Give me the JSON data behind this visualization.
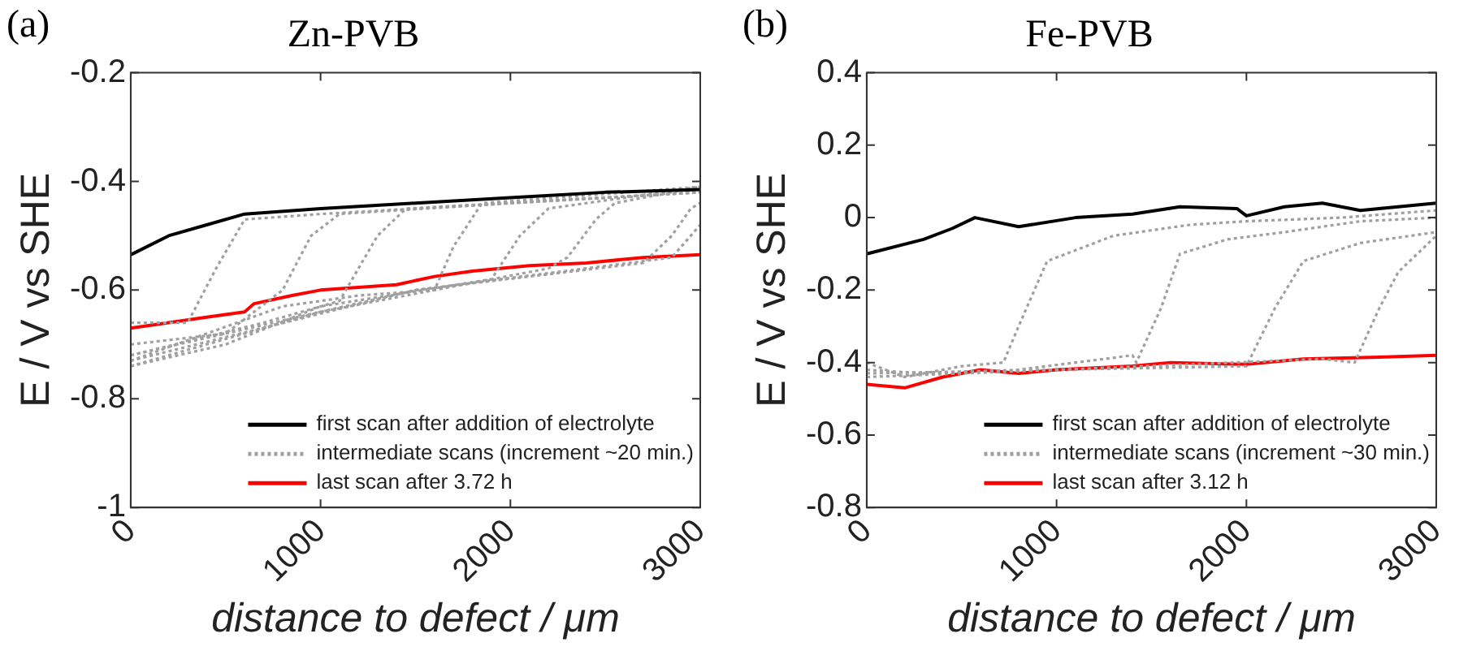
{
  "chart_data": [
    {
      "type": "line",
      "title": "Zn-PVB",
      "annotations": [
        "(a)"
      ],
      "xlabel": "distance to defect / μm",
      "ylabel": "E / V vs SHE",
      "xlim": [
        0,
        3000
      ],
      "xticks": [
        0,
        1000,
        2000,
        3000
      ],
      "ylim": [
        -1,
        -0.2
      ],
      "yticks": [
        -1,
        -0.8,
        -0.6,
        -0.4,
        -0.2
      ],
      "grid": false,
      "legend": "bottom right",
      "marker": "none",
      "series": [
        {
          "name": "first scan after addition of electrolyte",
          "color": "#000000",
          "line_style": "solid",
          "x": [
            0,
            200,
            400,
            600,
            1000,
            1500,
            2000,
            2500,
            3000
          ],
          "values": [
            -0.535,
            -0.5,
            -0.48,
            -0.46,
            -0.45,
            -0.44,
            -0.43,
            -0.42,
            -0.415
          ]
        },
        {
          "name": "intermediate scans (increment ~20 min.)",
          "color": "#a0a0a0",
          "line_style": "dotted",
          "x": [
            0,
            300,
            450,
            600,
            1000,
            2000,
            3000
          ],
          "values": [
            -0.66,
            -0.66,
            -0.56,
            -0.47,
            -0.46,
            -0.44,
            -0.42
          ]
        },
        {
          "color": "#a0a0a0",
          "line_style": "dotted",
          "x": [
            0,
            500,
            800,
            950,
            1100,
            2000,
            3000
          ],
          "values": [
            -0.7,
            -0.68,
            -0.6,
            -0.5,
            -0.46,
            -0.44,
            -0.42
          ]
        },
        {
          "color": "#a0a0a0",
          "line_style": "dotted",
          "x": [
            0,
            700,
            1000,
            1100,
            1300,
            1450,
            3000
          ],
          "values": [
            -0.72,
            -0.66,
            -0.63,
            -0.62,
            -0.5,
            -0.45,
            -0.42
          ]
        },
        {
          "color": "#a0a0a0",
          "line_style": "dotted",
          "x": [
            0,
            400,
            800,
            1200,
            1600,
            1700,
            1850,
            3000
          ],
          "values": [
            -0.73,
            -0.68,
            -0.63,
            -0.61,
            -0.6,
            -0.52,
            -0.44,
            -0.41
          ]
        },
        {
          "color": "#a0a0a0",
          "line_style": "dotted",
          "x": [
            0,
            500,
            1000,
            1900,
            2050,
            2200,
            3000
          ],
          "values": [
            -0.74,
            -0.7,
            -0.63,
            -0.58,
            -0.5,
            -0.45,
            -0.41
          ]
        },
        {
          "color": "#a0a0a0",
          "line_style": "dotted",
          "x": [
            0,
            1000,
            2200,
            2300,
            2450,
            2550,
            3000
          ],
          "values": [
            -0.74,
            -0.64,
            -0.56,
            -0.54,
            -0.47,
            -0.44,
            -0.41
          ]
        },
        {
          "color": "#a0a0a0",
          "line_style": "dotted",
          "x": [
            0,
            1500,
            2700,
            2850,
            2950,
            3000
          ],
          "values": [
            -0.73,
            -0.6,
            -0.55,
            -0.5,
            -0.45,
            -0.44
          ]
        },
        {
          "color": "#a0a0a0",
          "line_style": "dotted",
          "x": [
            0,
            1500,
            2850,
            2950,
            3000
          ],
          "values": [
            -0.72,
            -0.6,
            -0.54,
            -0.5,
            -0.48
          ]
        },
        {
          "name": "last scan after 3.72 h",
          "color": "#ff0000",
          "line_style": "solid",
          "x": [
            0,
            400,
            600,
            650,
            850,
            1000,
            1400,
            1600,
            1800,
            2100,
            2400,
            2700,
            3000
          ],
          "values": [
            -0.67,
            -0.65,
            -0.64,
            -0.625,
            -0.61,
            -0.6,
            -0.59,
            -0.575,
            -0.565,
            -0.555,
            -0.55,
            -0.54,
            -0.535
          ]
        }
      ]
    },
    {
      "type": "line",
      "title": "Fe-PVB",
      "annotations": [
        "(b)"
      ],
      "xlabel": "distance to defect / μm",
      "ylabel": "E / V vs SHE",
      "xlim": [
        0,
        3000
      ],
      "xticks": [
        0,
        1000,
        2000,
        3000
      ],
      "ylim": [
        -0.8,
        0.4
      ],
      "yticks": [
        -0.8,
        -0.6,
        -0.4,
        -0.2,
        0,
        0.2,
        0.4
      ],
      "grid": false,
      "legend": "bottom right",
      "marker": "none",
      "series": [
        {
          "name": "first scan after addition of electrolyte",
          "color": "#000000",
          "line_style": "solid",
          "x": [
            0,
            300,
            450,
            570,
            800,
            1100,
            1400,
            1650,
            1950,
            2000,
            2200,
            2400,
            2600,
            3000
          ],
          "values": [
            -0.1,
            -0.06,
            -0.03,
            0,
            -0.025,
            0,
            0.01,
            0.03,
            0.025,
            0.005,
            0.03,
            0.04,
            0.02,
            0.04
          ]
        },
        {
          "name": "intermediate scans (increment ~30 min.)",
          "color": "#a0a0a0",
          "line_style": "dotted",
          "x": [
            0,
            200,
            500,
            720,
            800,
            950,
            1300,
            1700,
            2000,
            2500,
            3000
          ],
          "values": [
            -0.4,
            -0.44,
            -0.41,
            -0.4,
            -0.3,
            -0.12,
            -0.05,
            -0.02,
            -0.01,
            0,
            0.02
          ]
        },
        {
          "color": "#a0a0a0",
          "line_style": "dotted",
          "x": [
            0,
            300,
            800,
            1400,
            1420,
            1550,
            1650,
            1900,
            2200,
            2600,
            3000
          ],
          "values": [
            -0.42,
            -0.43,
            -0.42,
            -0.38,
            -0.4,
            -0.25,
            -0.1,
            -0.06,
            -0.04,
            -0.01,
            0
          ]
        },
        {
          "color": "#a0a0a0",
          "line_style": "dotted",
          "x": [
            0,
            1000,
            2000,
            2150,
            2300,
            2600,
            3000
          ],
          "values": [
            -0.43,
            -0.42,
            -0.41,
            -0.25,
            -0.12,
            -0.07,
            -0.04
          ]
        },
        {
          "color": "#a0a0a0",
          "line_style": "dotted",
          "x": [
            0,
            1000,
            2400,
            2570,
            2700,
            2800,
            3000
          ],
          "values": [
            -0.44,
            -0.42,
            -0.39,
            -0.4,
            -0.25,
            -0.15,
            -0.05
          ]
        },
        {
          "name": "last scan after 3.12 h",
          "color": "#ff0000",
          "line_style": "solid",
          "x": [
            0,
            200,
            400,
            600,
            800,
            1000,
            1400,
            1600,
            2000,
            2300,
            2700,
            3000
          ],
          "values": [
            -0.46,
            -0.47,
            -0.44,
            -0.42,
            -0.43,
            -0.42,
            -0.41,
            -0.4,
            -0.405,
            -0.39,
            -0.385,
            -0.38
          ]
        }
      ]
    }
  ]
}
